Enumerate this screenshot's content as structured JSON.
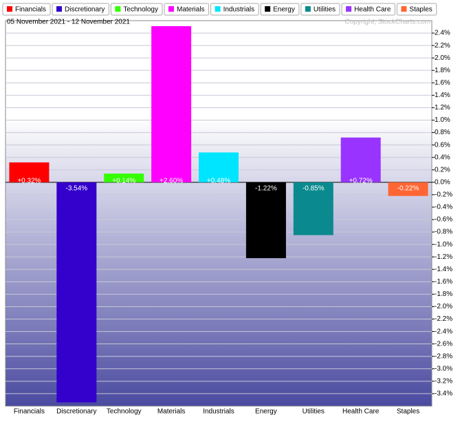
{
  "chart_data": {
    "type": "bar",
    "title": "05 November 2021 - 12 November 2021",
    "copyright": "Copyright, StockCharts.com",
    "categories": [
      "Financials",
      "Discretionary",
      "Technology",
      "Materials",
      "Industrials",
      "Energy",
      "Utilities",
      "Health Care",
      "Staples"
    ],
    "values": [
      0.32,
      -3.54,
      0.14,
      2.6,
      0.48,
      -1.22,
      -0.85,
      0.72,
      -0.22
    ],
    "value_labels": [
      "+0.32%",
      "-3.54%",
      "+0.14%",
      "+2.60%",
      "+0.48%",
      "-1.22%",
      "-0.85%",
      "+0.72%",
      "-0.22%"
    ],
    "colors": [
      "#ff0000",
      "#3300cc",
      "#33ff00",
      "#ff00ff",
      "#00e5ff",
      "#000000",
      "#0a8a8e",
      "#9933ff",
      "#ff6633"
    ],
    "ylim": [
      -3.6,
      2.6
    ],
    "yticks": [
      {
        "value": 2.4,
        "label": "2.4%"
      },
      {
        "value": 2.2,
        "label": "2.2%"
      },
      {
        "value": 2.0,
        "label": "2.0%"
      },
      {
        "value": 1.8,
        "label": "1.8%"
      },
      {
        "value": 1.6,
        "label": "1.6%"
      },
      {
        "value": 1.4,
        "label": "1.4%"
      },
      {
        "value": 1.2,
        "label": "1.2%"
      },
      {
        "value": 1.0,
        "label": "1.0%"
      },
      {
        "value": 0.8,
        "label": "0.8%"
      },
      {
        "value": 0.6,
        "label": "0.6%"
      },
      {
        "value": 0.4,
        "label": "0.4%"
      },
      {
        "value": 0.2,
        "label": "0.2%"
      },
      {
        "value": 0.0,
        "label": "0.0%"
      },
      {
        "value": -0.2,
        "label": "-0.2%"
      },
      {
        "value": -0.4,
        "label": "-0.4%"
      },
      {
        "value": -0.6,
        "label": "-0.6%"
      },
      {
        "value": -0.8,
        "label": "-0.8%"
      },
      {
        "value": -1.0,
        "label": "-1.0%"
      },
      {
        "value": -1.2,
        "label": "-1.2%"
      },
      {
        "value": -1.4,
        "label": "-1.4%"
      },
      {
        "value": -1.6,
        "label": "-1.6%"
      },
      {
        "value": -1.8,
        "label": "-1.8%"
      },
      {
        "value": -2.0,
        "label": "-2.0%"
      },
      {
        "value": -2.2,
        "label": "-2.2%"
      },
      {
        "value": -2.4,
        "label": "-2.4%"
      },
      {
        "value": -2.6,
        "label": "-2.6%"
      },
      {
        "value": -2.8,
        "label": "-2.8%"
      },
      {
        "value": -3.0,
        "label": "-3.0%"
      },
      {
        "value": -3.2,
        "label": "-3.2%"
      },
      {
        "value": -3.4,
        "label": "-3.4%"
      }
    ],
    "grid": true
  }
}
